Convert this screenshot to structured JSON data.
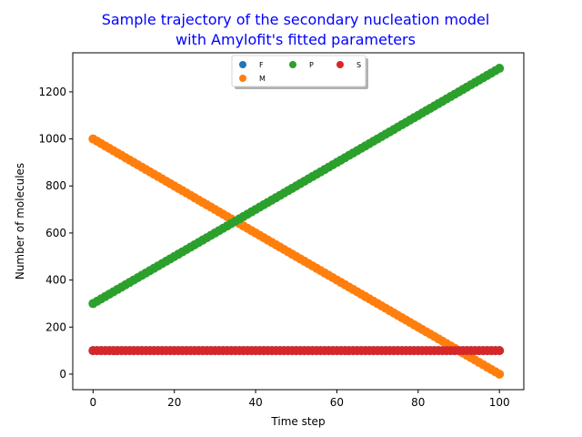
{
  "chart_data": {
    "type": "scatter",
    "title_line1": "Sample trajectory of the secondary nucleation model",
    "title_line2": "with Amylofit's fitted parameters",
    "xlabel": "Time step",
    "ylabel": "Number of molecules",
    "xlim": [
      -5,
      106
    ],
    "ylim": [
      -66,
      1366
    ],
    "xticks": [
      0,
      20,
      40,
      60,
      80,
      100
    ],
    "yticks": [
      0,
      200,
      400,
      600,
      800,
      1000,
      1200
    ],
    "grid": false,
    "legend_placement": "top-center",
    "x": {
      "start": 0,
      "end": 100,
      "step": 1
    },
    "series": [
      {
        "name": "F",
        "color": "#1f77b4",
        "start": 100,
        "end": 100
      },
      {
        "name": "M",
        "color": "#ff7f0e",
        "start": 1000,
        "end": 0
      },
      {
        "name": "P",
        "color": "#2ca02c",
        "start": 300,
        "end": 1300
      },
      {
        "name": "S",
        "color": "#d62728",
        "start": 100,
        "end": 100
      }
    ]
  }
}
